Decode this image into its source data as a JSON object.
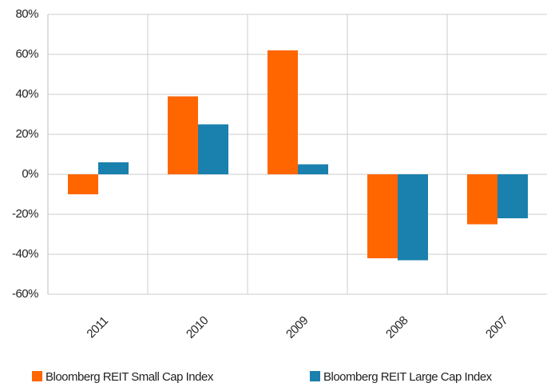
{
  "chart_data": {
    "type": "bar",
    "categories": [
      "2011",
      "2010",
      "2009",
      "2008",
      "2007"
    ],
    "series": [
      {
        "name": "Bloomberg REIT Small Cap Index",
        "color": "#ff6600",
        "values": [
          -10,
          39,
          62,
          -42,
          -25
        ]
      },
      {
        "name": "Bloomberg REIT Large Cap Index",
        "color": "#1a80ad",
        "values": [
          6,
          25,
          5,
          -43,
          -22
        ]
      }
    ],
    "ylim": [
      -60,
      80
    ],
    "yticks": [
      {
        "value": -60,
        "label": "-60%"
      },
      {
        "value": -40,
        "label": "-40%"
      },
      {
        "value": -20,
        "label": "-20%"
      },
      {
        "value": 0,
        "label": "0%"
      },
      {
        "value": 20,
        "label": "20%"
      },
      {
        "value": 40,
        "label": "40%"
      },
      {
        "value": 60,
        "label": "60%"
      },
      {
        "value": 80,
        "label": "80%"
      }
    ],
    "grid": true,
    "legend": "bottom"
  }
}
